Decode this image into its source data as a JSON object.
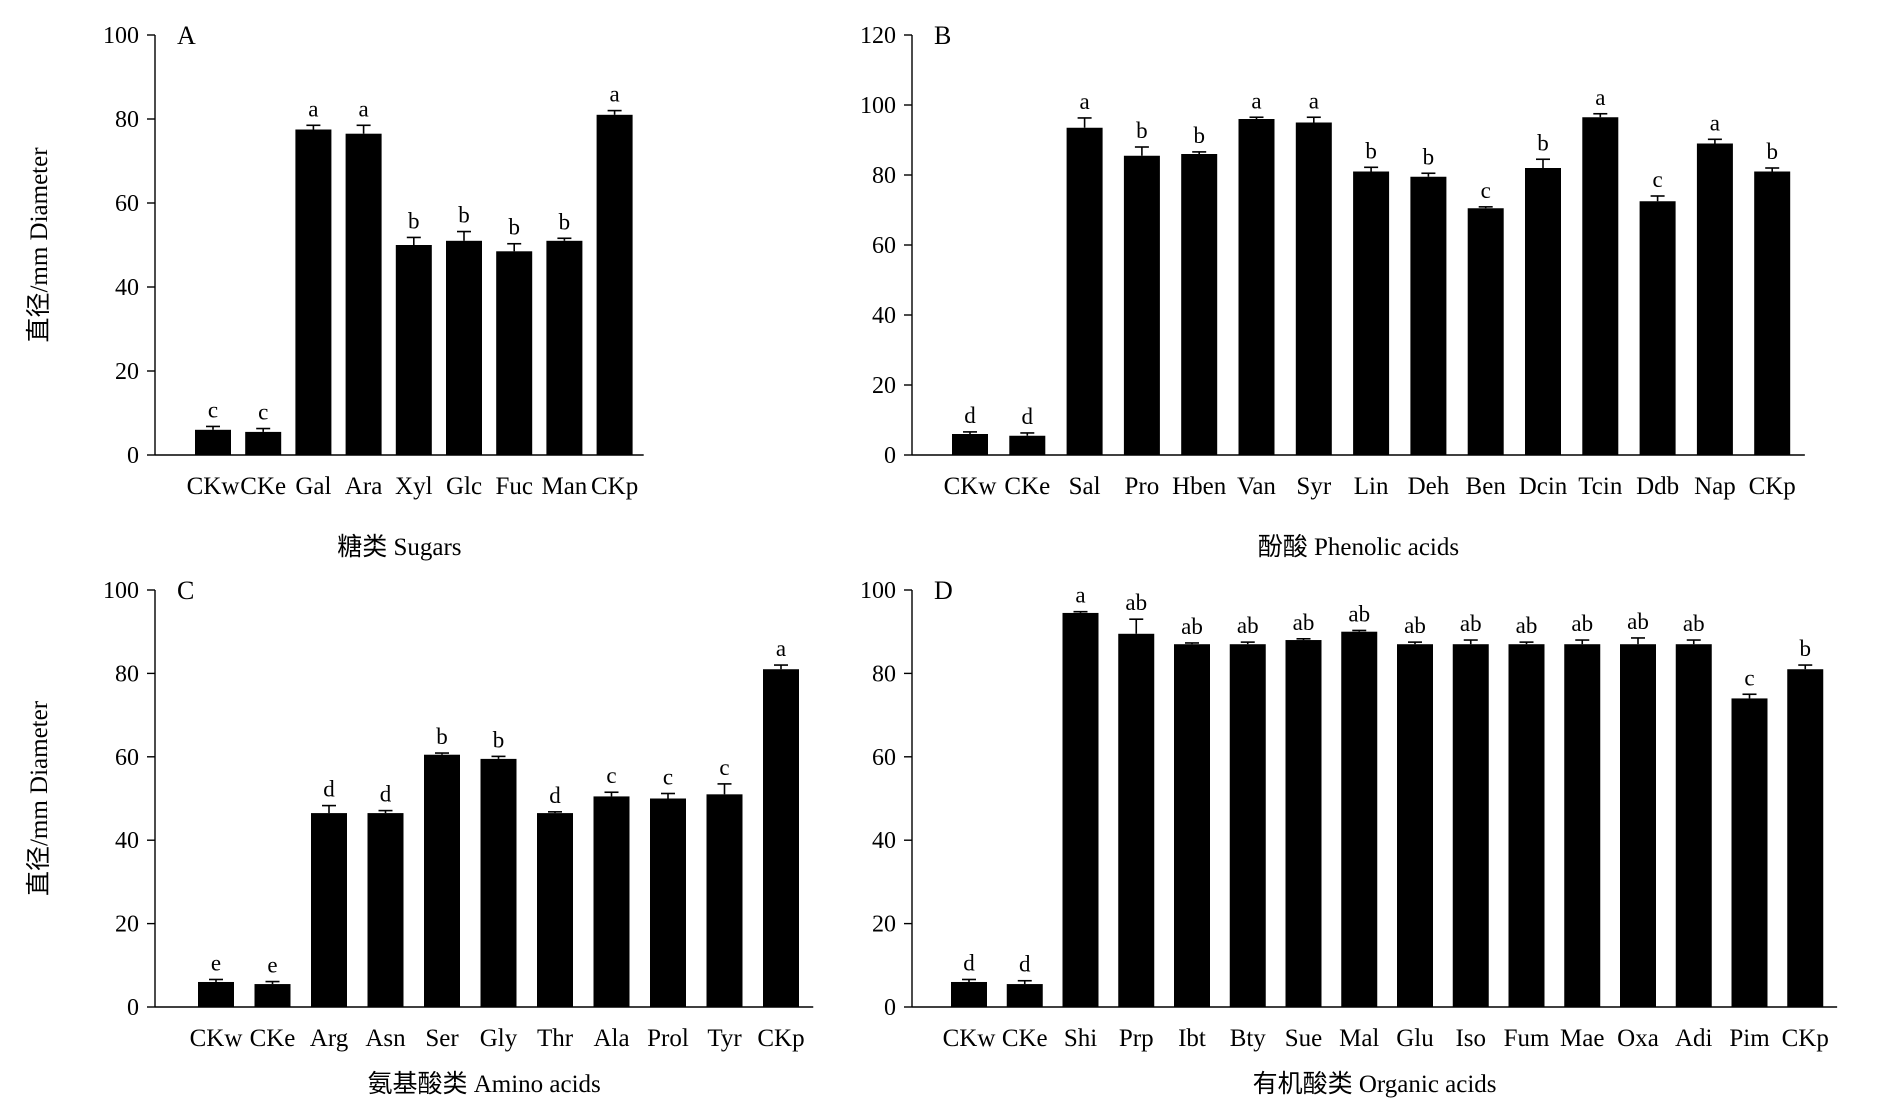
{
  "chart_data": [
    {
      "type": "bar",
      "panel_label": "A",
      "ylabel": "直径/mm Diameter",
      "xlabel": "糖类 Sugars",
      "ylim": [
        0,
        100
      ],
      "yticks": [
        0,
        20,
        40,
        60,
        80,
        100
      ],
      "categories": [
        "CKw",
        "CKe",
        "Gal",
        "Ara",
        "Xyl",
        "Glc",
        "Fuc",
        "Man",
        "CKp"
      ],
      "values": [
        6,
        5.5,
        77.5,
        76.5,
        50,
        51,
        48.5,
        51,
        81
      ],
      "errors": [
        0.8,
        0.8,
        1.0,
        2.0,
        1.8,
        2.2,
        1.8,
        0.6,
        1.0
      ],
      "significance": [
        "c",
        "c",
        "a",
        "a",
        "b",
        "b",
        "b",
        "b",
        "a"
      ]
    },
    {
      "type": "bar",
      "panel_label": "B",
      "ylabel": "",
      "xlabel": "酚酸 Phenolic acids",
      "ylim": [
        0,
        120
      ],
      "yticks": [
        0,
        20,
        40,
        60,
        80,
        100,
        120
      ],
      "categories": [
        "CKw",
        "CKe",
        "Sal",
        "Pro",
        "Hben",
        "Van",
        "Syr",
        "Lin",
        "Deh",
        "Ben",
        "Dcin",
        "Tcin",
        "Ddb",
        "Nap",
        "CKp"
      ],
      "values": [
        6,
        5.5,
        93.5,
        85.5,
        86,
        96,
        95,
        81,
        79.5,
        70.5,
        82,
        96.5,
        72.5,
        89,
        81
      ],
      "errors": [
        0.6,
        0.8,
        2.8,
        2.5,
        0.6,
        0.5,
        1.5,
        1.2,
        1.0,
        0.4,
        2.5,
        1.0,
        1.5,
        1.2,
        1.0
      ],
      "significance": [
        "d",
        "d",
        "a",
        "b",
        "b",
        "a",
        "a",
        "b",
        "b",
        "c",
        "b",
        "a",
        "c",
        "a",
        "b"
      ]
    },
    {
      "type": "bar",
      "panel_label": "C",
      "ylabel": "直径/mm Diameter",
      "xlabel": "氨基酸类 Amino acids",
      "ylim": [
        0,
        100
      ],
      "yticks": [
        0,
        20,
        40,
        60,
        80,
        100
      ],
      "categories": [
        "CKw",
        "CKe",
        "Arg",
        "Asn",
        "Ser",
        "Gly",
        "Thr",
        "Ala",
        "Prol",
        "Tyr",
        "CKp"
      ],
      "values": [
        6,
        5.5,
        46.5,
        46.5,
        60.5,
        59.5,
        46.5,
        50.5,
        50,
        51,
        81
      ],
      "errors": [
        0.6,
        0.6,
        1.8,
        0.6,
        0.4,
        0.6,
        0.3,
        1.0,
        1.2,
        2.5,
        1.0
      ],
      "significance": [
        "e",
        "e",
        "d",
        "d",
        "b",
        "b",
        "d",
        "c",
        "c",
        "c",
        "a"
      ]
    },
    {
      "type": "bar",
      "panel_label": "D",
      "ylabel": "",
      "xlabel": "有机酸类 Organic acids",
      "ylim": [
        0,
        100
      ],
      "yticks": [
        0,
        20,
        40,
        60,
        80,
        100
      ],
      "categories": [
        "CKw",
        "CKe",
        "Shi",
        "Prp",
        "Ibt",
        "Bty",
        "Sue",
        "Mal",
        "Glu",
        "Iso",
        "Fum",
        "Mae",
        "Oxa",
        "Adi",
        "Pim",
        "CKp"
      ],
      "values": [
        6,
        5.5,
        94.5,
        89.5,
        87,
        87,
        88,
        90,
        87,
        87,
        87,
        87,
        87,
        87,
        74,
        81
      ],
      "errors": [
        0.6,
        0.8,
        0.3,
        3.5,
        0.3,
        0.5,
        0.3,
        0.3,
        0.5,
        1.0,
        0.5,
        1.0,
        1.5,
        1.0,
        1.0,
        1.0
      ],
      "significance": [
        "d",
        "d",
        "a",
        "ab",
        "ab",
        "ab",
        "ab",
        "ab",
        "ab",
        "ab",
        "ab",
        "ab",
        "ab",
        "ab",
        "c",
        "b"
      ]
    }
  ]
}
